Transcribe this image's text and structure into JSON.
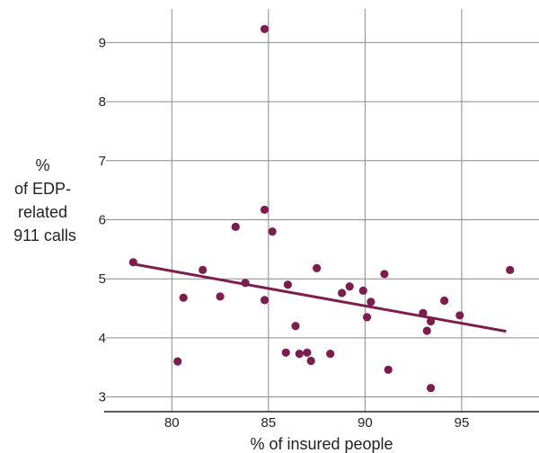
{
  "chart_data": {
    "type": "scatter",
    "xlabel": "% of insured people",
    "ylabel_lines": [
      "%",
      "of EDP-",
      "related",
      "911 calls"
    ],
    "xlim": [
      76.5,
      99
    ],
    "ylim": [
      2.75,
      9.6
    ],
    "xticks": [
      80,
      85,
      90,
      95
    ],
    "yticks": [
      3,
      4,
      5,
      6,
      7,
      8,
      9
    ],
    "grid": true,
    "point_color": "#7b1e4e",
    "line_color": "#7b1e4e",
    "points": [
      {
        "x": 78.0,
        "y": 5.28
      },
      {
        "x": 80.3,
        "y": 3.6
      },
      {
        "x": 80.6,
        "y": 4.68
      },
      {
        "x": 81.6,
        "y": 5.15
      },
      {
        "x": 82.5,
        "y": 4.7
      },
      {
        "x": 83.3,
        "y": 5.88
      },
      {
        "x": 83.8,
        "y": 4.93
      },
      {
        "x": 84.8,
        "y": 9.23
      },
      {
        "x": 84.8,
        "y": 6.17
      },
      {
        "x": 84.8,
        "y": 4.64
      },
      {
        "x": 85.2,
        "y": 5.8
      },
      {
        "x": 85.9,
        "y": 3.75
      },
      {
        "x": 86.0,
        "y": 4.9
      },
      {
        "x": 86.4,
        "y": 4.2
      },
      {
        "x": 86.6,
        "y": 3.73
      },
      {
        "x": 87.0,
        "y": 3.75
      },
      {
        "x": 87.2,
        "y": 3.61
      },
      {
        "x": 87.5,
        "y": 5.18
      },
      {
        "x": 88.2,
        "y": 3.73
      },
      {
        "x": 88.8,
        "y": 4.76
      },
      {
        "x": 89.2,
        "y": 4.87
      },
      {
        "x": 89.9,
        "y": 4.8
      },
      {
        "x": 90.1,
        "y": 4.35
      },
      {
        "x": 90.3,
        "y": 4.61
      },
      {
        "x": 91.0,
        "y": 5.08
      },
      {
        "x": 91.2,
        "y": 3.46
      },
      {
        "x": 93.0,
        "y": 4.42
      },
      {
        "x": 93.2,
        "y": 4.12
      },
      {
        "x": 93.4,
        "y": 4.28
      },
      {
        "x": 93.4,
        "y": 3.15
      },
      {
        "x": 94.1,
        "y": 4.63
      },
      {
        "x": 94.9,
        "y": 4.38
      },
      {
        "x": 97.5,
        "y": 5.15
      }
    ],
    "trendline": {
      "x": [
        78.0,
        97.3
      ],
      "y": [
        5.25,
        4.11
      ]
    }
  }
}
